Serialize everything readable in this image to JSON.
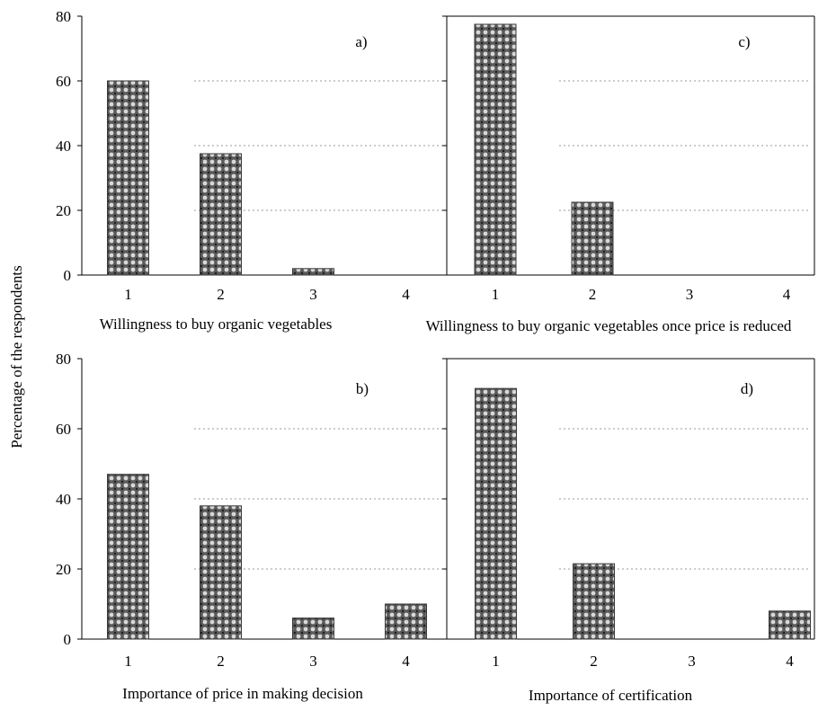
{
  "figure": {
    "ylabel": "Percentage of the respondents",
    "bar_color": "#8a8a8a",
    "bar_pattern": "dotted-crosshatch"
  },
  "chart_data": [
    {
      "type": "bar",
      "panel": "a)",
      "categories": [
        "1",
        "2",
        "3",
        "4"
      ],
      "values": [
        60,
        37.5,
        2,
        0
      ],
      "xlabel": "Willingness to buy organic vegetables",
      "ylabel": "Percentage of the respondents",
      "ylim": [
        0,
        80
      ],
      "yticks": [
        "0",
        "20",
        "40",
        "60",
        "80"
      ],
      "grid": true
    },
    {
      "type": "bar",
      "panel": "c)",
      "categories": [
        "1",
        "2",
        "3",
        "4"
      ],
      "values": [
        77.5,
        22.5,
        0,
        0
      ],
      "xlabel": "Willingness to buy organic vegetables once price is reduced",
      "ylim": [
        0,
        80
      ],
      "grid": true
    },
    {
      "type": "bar",
      "panel": "b)",
      "categories": [
        "1",
        "2",
        "3",
        "4"
      ],
      "values": [
        47,
        38,
        6,
        10
      ],
      "xlabel": "Importance of price in making decision",
      "ylabel": "Percentage of the respondents",
      "ylim": [
        0,
        80
      ],
      "yticks": [
        "0",
        "20",
        "40",
        "60",
        "80"
      ],
      "grid": true
    },
    {
      "type": "bar",
      "panel": "d)",
      "categories": [
        "1",
        "2",
        "3",
        "4"
      ],
      "values": [
        71.5,
        21.5,
        0,
        8
      ],
      "xlabel": "Importance of certification",
      "ylim": [
        0,
        80
      ],
      "grid": true
    }
  ]
}
